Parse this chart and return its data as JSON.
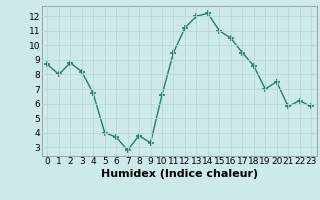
{
  "x": [
    0,
    1,
    2,
    3,
    4,
    5,
    6,
    7,
    8,
    9,
    10,
    11,
    12,
    13,
    14,
    15,
    16,
    17,
    18,
    19,
    20,
    21,
    22,
    23
  ],
  "y": [
    8.7,
    8.0,
    8.8,
    8.2,
    6.7,
    4.0,
    3.7,
    2.8,
    3.8,
    3.3,
    6.6,
    9.5,
    11.2,
    12.0,
    12.2,
    11.0,
    10.5,
    9.5,
    8.6,
    7.0,
    7.5,
    5.8,
    6.2,
    5.8
  ],
  "xlabel": "Humidex (Indice chaleur)",
  "xlim": [
    -0.5,
    23.5
  ],
  "ylim": [
    2.4,
    12.7
  ],
  "yticks": [
    3,
    4,
    5,
    6,
    7,
    8,
    9,
    10,
    11,
    12
  ],
  "xtick_labels": [
    "0",
    "1",
    "2",
    "3",
    "4",
    "5",
    "6",
    "7",
    "8",
    "9",
    "10",
    "11",
    "12",
    "13",
    "14",
    "15",
    "16",
    "17",
    "18",
    "19",
    "20",
    "21",
    "22",
    "23"
  ],
  "line_color": "#2a7a6a",
  "marker": "+",
  "marker_size": 5,
  "bg_color": "#cdeaea",
  "grid_color": "#b8d8d8",
  "tick_label_fontsize": 6.5,
  "xlabel_fontsize": 8
}
